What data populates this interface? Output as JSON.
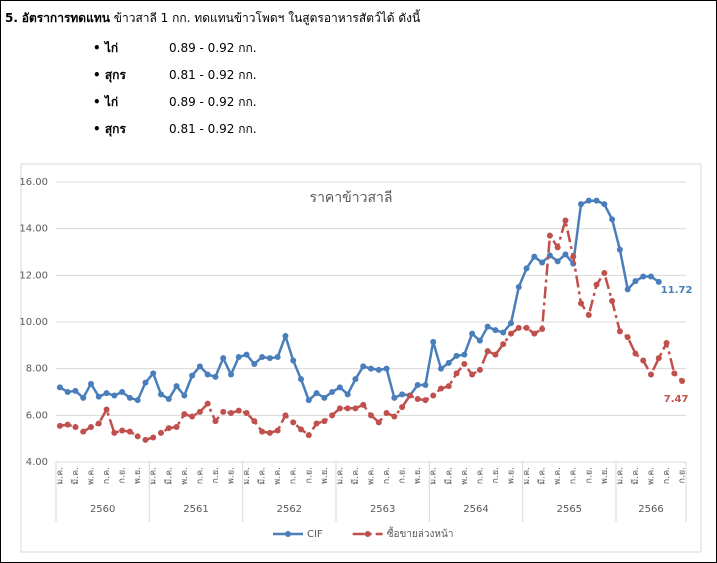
{
  "document": {
    "heading": {
      "number": "5.",
      "bold": "อัตราการทดแทน",
      "rest": "ข้าวสาลี 1 กก. ทดแทนข้าวโพดฯ ในสูตรอาหารสัตว์ได้ ดังนี้"
    },
    "items": [
      {
        "bullet": "•",
        "name": "ไก่",
        "value": "0.89 - 0.92 กก."
      },
      {
        "bullet": "•",
        "name": "สุกร",
        "value": "0.81 - 0.92 กก."
      },
      {
        "bullet": "•",
        "name": "ไก่",
        "value": "0.89 - 0.92 กก."
      },
      {
        "bullet": "•",
        "name": "สุกร",
        "value": "0.81 - 0.92 กก."
      }
    ]
  },
  "chart_data": {
    "type": "line",
    "title": "ราคาข้าวสาลี",
    "categories": [
      "ม.ค.",
      null,
      "มี.ค.",
      null,
      "พ.ค.",
      null,
      "ก.ค.",
      null,
      "ก.ย.",
      null,
      "พ.ย.",
      null,
      "ม.ค.",
      null,
      "มี.ค.",
      null,
      "พ.ค.",
      null,
      "ก.ค.",
      null,
      "ก.ย.",
      null,
      "พ.ย.",
      null,
      "ม.ค.",
      null,
      "มี.ค.",
      null,
      "พ.ค.",
      null,
      "ก.ค.",
      null,
      "ก.ย.",
      null,
      "พ.ย.",
      null,
      "ม.ค.",
      null,
      "มี.ค.",
      null,
      "พ.ค.",
      null,
      "ก.ค.",
      null,
      "ก.ย.",
      null,
      "พ.ย.",
      null,
      "ม.ค.",
      null,
      "มี.ค.",
      null,
      "พ.ค.",
      null,
      "ก.ค.",
      null,
      "ก.ย.",
      null,
      "พ.ย.",
      null,
      "ม.ค.",
      null,
      "มี.ค.",
      null,
      "พ.ค.",
      null,
      "ก.ค.",
      null,
      "ก.ย.",
      null,
      "พ.ย.",
      null,
      "ม.ค.",
      null,
      "มี.ค.",
      null,
      "พ.ค.",
      null,
      "ก.ค.",
      null,
      "ก.ย."
    ],
    "groups": [
      "2560",
      "2561",
      "2562",
      "2563",
      "2564",
      "2565",
      "2566"
    ],
    "series": [
      {
        "name": "CIF",
        "color": "#4a7ebb",
        "values": [
          7.2,
          7.0,
          7.05,
          6.75,
          7.35,
          6.8,
          6.95,
          6.85,
          7.0,
          6.75,
          6.65,
          7.4,
          7.8,
          6.9,
          6.7,
          7.25,
          6.85,
          7.7,
          8.1,
          7.75,
          7.65,
          8.45,
          7.75,
          8.5,
          8.6,
          8.2,
          8.5,
          8.45,
          8.5,
          9.4,
          8.35,
          7.55,
          6.65,
          6.95,
          6.75,
          7.0,
          7.2,
          6.9,
          7.55,
          8.1,
          8.0,
          7.95,
          8.0,
          6.75,
          6.9,
          6.85,
          7.3,
          7.3,
          9.15,
          8.0,
          8.25,
          8.55,
          8.6,
          9.5,
          9.2,
          9.8,
          9.65,
          9.55,
          9.95,
          11.5,
          12.3,
          12.8,
          12.55,
          12.85,
          12.6,
          12.9,
          12.5,
          15.05,
          15.2,
          15.2,
          15.05,
          14.4,
          13.1,
          11.4,
          11.75,
          11.95,
          11.95,
          11.72,
          null,
          null,
          null
        ]
      },
      {
        "name": "ซื้อขายล่วงหน้า",
        "color": "#c0504d",
        "values": [
          5.55,
          5.6,
          5.5,
          5.3,
          5.5,
          5.65,
          6.25,
          5.25,
          5.35,
          5.3,
          5.1,
          4.95,
          5.05,
          5.25,
          5.45,
          5.5,
          6.05,
          5.95,
          6.15,
          6.5,
          5.75,
          6.15,
          6.1,
          6.2,
          6.1,
          5.75,
          5.3,
          5.25,
          5.35,
          6.0,
          5.7,
          5.4,
          5.15,
          5.65,
          5.75,
          6.0,
          6.3,
          6.3,
          6.3,
          6.45,
          6.0,
          5.7,
          6.1,
          5.95,
          6.35,
          6.85,
          6.7,
          6.65,
          6.85,
          7.15,
          7.25,
          7.8,
          8.2,
          7.75,
          7.95,
          8.75,
          8.6,
          9.05,
          9.5,
          9.75,
          9.75,
          9.5,
          9.7,
          13.7,
          13.2,
          14.35,
          12.8,
          10.8,
          10.3,
          11.6,
          12.1,
          10.9,
          9.6,
          9.35,
          8.65,
          8.35,
          7.75,
          8.45,
          9.1,
          7.8,
          7.47
        ]
      }
    ],
    "ylim": [
      4,
      16
    ],
    "yticks": [
      {
        "value": 4,
        "label": "4.00"
      },
      {
        "value": 6,
        "label": "6.00"
      },
      {
        "value": 8,
        "label": "8.00"
      },
      {
        "value": 10,
        "label": "10.00"
      },
      {
        "value": 12,
        "label": "12.00"
      },
      {
        "value": 14,
        "label": "14.00"
      },
      {
        "value": 16,
        "label": "16.00"
      }
    ],
    "grid": true,
    "legend": "bottom"
  }
}
